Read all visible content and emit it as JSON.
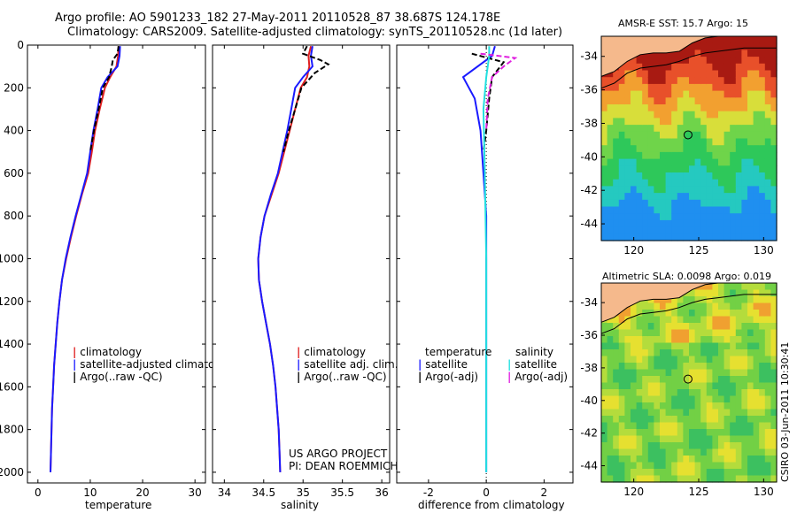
{
  "header": {
    "line1": "Argo profile: AO 5901233_182 27-May-2011 20110528_87 38.687S 124.178E",
    "line2": "Climatology: CARS2009. Satellite-adjusted climatology: synTS_20110528.nc (1d later)"
  },
  "side_label": "CSIRO 03-Jun-2011 10:30:41",
  "project": {
    "line1": "US ARGO PROJECT",
    "line2": "PI: DEAN ROEMMICH"
  },
  "colors": {
    "clim": "#e02020",
    "sat": "#1a1aff",
    "argo": "#000000",
    "sat_diff_s": "#22e0e0",
    "argo_diff_s": "#e020e0",
    "land": "#f5b98c"
  },
  "chart_data": [
    {
      "id": "temperature",
      "type": "line",
      "xlabel": "temperature",
      "xlim": [
        -2,
        32
      ],
      "xticks": [
        "0",
        "10",
        "20",
        "30"
      ],
      "ylim": [
        0,
        2050
      ],
      "yticks": [
        "0",
        "200",
        "400",
        "600",
        "800",
        "1000",
        "1200",
        "1400",
        "1600",
        "1800",
        "2000"
      ],
      "legend": [
        "climatology",
        "satellite-adjusted climatology",
        "Argo(..raw -QC)"
      ],
      "series": [
        {
          "name": "climatology",
          "color": "#e02020",
          "points": [
            [
              15.4,
              5
            ],
            [
              15.3,
              50
            ],
            [
              15.0,
              100
            ],
            [
              13.8,
              150
            ],
            [
              12.8,
              200
            ],
            [
              11.8,
              300
            ],
            [
              10.9,
              400
            ],
            [
              10.3,
              500
            ],
            [
              9.6,
              600
            ],
            [
              8.4,
              700
            ],
            [
              7.3,
              800
            ],
            [
              6.3,
              900
            ],
            [
              5.4,
              1000
            ],
            [
              4.6,
              1100
            ],
            [
              4.1,
              1200
            ],
            [
              3.7,
              1300
            ],
            [
              3.4,
              1400
            ],
            [
              3.1,
              1500
            ],
            [
              2.9,
              1600
            ],
            [
              2.7,
              1700
            ],
            [
              2.6,
              1800
            ],
            [
              2.5,
              1900
            ],
            [
              2.4,
              2000
            ]
          ]
        },
        {
          "name": "satellite-adjusted climatology",
          "color": "#1a1aff",
          "points": [
            [
              15.7,
              5
            ],
            [
              15.6,
              50
            ],
            [
              15.2,
              100
            ],
            [
              13.3,
              150
            ],
            [
              12.1,
              200
            ],
            [
              11.4,
              300
            ],
            [
              10.6,
              400
            ],
            [
              10.0,
              500
            ],
            [
              9.4,
              600
            ],
            [
              8.3,
              700
            ],
            [
              7.2,
              800
            ],
            [
              6.2,
              900
            ],
            [
              5.3,
              1000
            ],
            [
              4.6,
              1100
            ],
            [
              4.1,
              1200
            ],
            [
              3.7,
              1300
            ],
            [
              3.4,
              1400
            ],
            [
              3.1,
              1500
            ],
            [
              2.9,
              1600
            ],
            [
              2.7,
              1700
            ],
            [
              2.6,
              1800
            ],
            [
              2.5,
              1900
            ],
            [
              2.4,
              2000
            ]
          ]
        },
        {
          "name": "Argo(..raw -QC)",
          "color": "#000000",
          "dashed": true,
          "points": [
            [
              15.4,
              5
            ],
            [
              15.2,
              40
            ],
            [
              14.3,
              70
            ],
            [
              14.1,
              100
            ],
            [
              13.6,
              150
            ],
            [
              12.4,
              200
            ],
            [
              11.6,
              300
            ],
            [
              10.7,
              400
            ],
            [
              10.0,
              500
            ]
          ]
        }
      ]
    },
    {
      "id": "salinity",
      "type": "line",
      "xlabel": "salinity",
      "xlim": [
        33.85,
        36.1
      ],
      "xticks": [
        "34",
        "34.5",
        "35",
        "35.5",
        "36"
      ],
      "ylim": [
        0,
        2050
      ],
      "legend": [
        "climatology",
        "satellite adj. clim.",
        "Argo(..raw -QC)"
      ],
      "series": [
        {
          "name": "climatology",
          "color": "#e02020",
          "points": [
            [
              35.1,
              5
            ],
            [
              35.07,
              50
            ],
            [
              35.08,
              100
            ],
            [
              35.05,
              150
            ],
            [
              34.97,
              200
            ],
            [
              34.9,
              300
            ],
            [
              34.83,
              400
            ],
            [
              34.76,
              500
            ],
            [
              34.69,
              600
            ],
            [
              34.6,
              700
            ],
            [
              34.51,
              800
            ],
            [
              34.46,
              900
            ],
            [
              34.43,
              1000
            ],
            [
              34.44,
              1100
            ],
            [
              34.48,
              1200
            ],
            [
              34.53,
              1300
            ],
            [
              34.58,
              1400
            ],
            [
              34.62,
              1500
            ],
            [
              34.65,
              1600
            ],
            [
              34.67,
              1700
            ],
            [
              34.69,
              1800
            ],
            [
              34.7,
              1900
            ],
            [
              34.71,
              2000
            ]
          ]
        },
        {
          "name": "satellite adj. clim.",
          "color": "#1a1aff",
          "points": [
            [
              35.12,
              5
            ],
            [
              35.1,
              50
            ],
            [
              35.12,
              100
            ],
            [
              35.0,
              150
            ],
            [
              34.9,
              200
            ],
            [
              34.85,
              300
            ],
            [
              34.8,
              400
            ],
            [
              34.74,
              500
            ],
            [
              34.68,
              600
            ],
            [
              34.59,
              700
            ],
            [
              34.51,
              800
            ],
            [
              34.46,
              900
            ],
            [
              34.43,
              1000
            ],
            [
              34.44,
              1100
            ],
            [
              34.48,
              1200
            ],
            [
              34.53,
              1300
            ],
            [
              34.58,
              1400
            ],
            [
              34.62,
              1500
            ],
            [
              34.65,
              1600
            ],
            [
              34.67,
              1700
            ],
            [
              34.69,
              1800
            ],
            [
              34.7,
              1900
            ],
            [
              34.71,
              2000
            ]
          ]
        },
        {
          "name": "Argo(..raw -QC)",
          "color": "#000000",
          "dashed": true,
          "points": [
            [
              35.05,
              5
            ],
            [
              35.0,
              40
            ],
            [
              35.22,
              70
            ],
            [
              35.32,
              90
            ],
            [
              35.15,
              130
            ],
            [
              34.98,
              200
            ],
            [
              34.9,
              300
            ],
            [
              34.82,
              400
            ],
            [
              34.75,
              500
            ]
          ]
        }
      ]
    },
    {
      "id": "difference",
      "type": "line",
      "xlabel": "difference from climatology",
      "xlim": [
        -3.1,
        3.0
      ],
      "xticks": [
        "-2",
        "0",
        "2"
      ],
      "ylim": [
        0,
        2050
      ],
      "legend_t": [
        "temperature",
        "satellite",
        "Argo(-adj)"
      ],
      "legend_s": [
        "salinity",
        "satellite",
        "Argo(-adj)"
      ],
      "series": [
        {
          "name": "temperature satellite",
          "color": "#1a1aff",
          "points": [
            [
              0.3,
              5
            ],
            [
              0.2,
              50
            ],
            [
              -0.8,
              150
            ],
            [
              -0.4,
              250
            ],
            [
              -0.2,
              400
            ],
            [
              -0.1,
              600
            ],
            [
              0.0,
              800
            ],
            [
              0.0,
              1000
            ],
            [
              0.0,
              2000
            ]
          ]
        },
        {
          "name": "temperature Argo(-adj)",
          "color": "#000000",
          "dashed": true,
          "points": [
            [
              -0.5,
              40
            ],
            [
              0.6,
              80
            ],
            [
              0.2,
              150
            ],
            [
              0.1,
              250
            ],
            [
              0.0,
              400
            ],
            [
              -0.1,
              500
            ]
          ]
        },
        {
          "name": "salinity satellite",
          "color": "#22e0e0",
          "points": [
            [
              0.1,
              5
            ],
            [
              0.1,
              50
            ],
            [
              0.0,
              150
            ],
            [
              -0.1,
              300
            ],
            [
              -0.05,
              600
            ],
            [
              0.0,
              1000
            ],
            [
              0.0,
              2000
            ]
          ]
        },
        {
          "name": "salinity Argo(-adj)",
          "color": "#e020e0",
          "dashed": true,
          "points": [
            [
              -0.2,
              40
            ],
            [
              1.0,
              60
            ],
            [
              0.6,
              100
            ],
            [
              0.2,
              150
            ],
            [
              0.05,
              250
            ],
            [
              0.0,
              400
            ]
          ]
        }
      ]
    }
  ],
  "maps": [
    {
      "id": "sst",
      "title": "AMSR-E SST: 15.7 Argo: 15",
      "yticks": [
        "-34",
        "-36",
        "-38",
        "-40",
        "-42",
        "-44"
      ],
      "xticks": [
        "120",
        "125",
        "130"
      ],
      "lon_range": [
        117.5,
        131.0
      ],
      "lat_range": [
        -45.0,
        -32.8
      ],
      "float_position": {
        "lon": 124.178,
        "lat": -38.687
      }
    },
    {
      "id": "sla",
      "title": "Altimetric SLA: 0.0098 Argo: 0.019",
      "yticks": [
        "-34",
        "-36",
        "-38",
        "-40",
        "-42",
        "-44"
      ],
      "xticks": [
        "120",
        "125",
        "130"
      ],
      "lon_range": [
        117.5,
        131.0
      ],
      "lat_range": [
        -45.0,
        -32.8
      ],
      "float_position": {
        "lon": 124.178,
        "lat": -38.687
      }
    }
  ]
}
